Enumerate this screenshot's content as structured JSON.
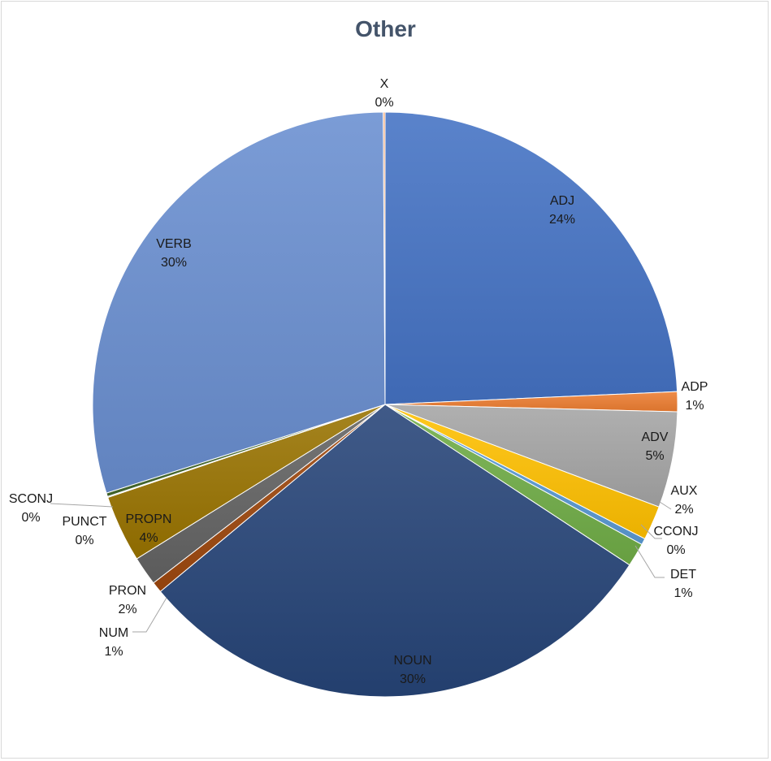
{
  "chart_data": {
    "type": "pie",
    "title": "Other",
    "slices": [
      {
        "label": "ADJ",
        "pct_label": "24%",
        "value": 24.3,
        "color": "#4472c4"
      },
      {
        "label": "ADP",
        "pct_label": "1%",
        "value": 1.1,
        "color": "#ed7d31"
      },
      {
        "label": "ADV",
        "pct_label": "5%",
        "value": 5.3,
        "color": "#a5a5a5"
      },
      {
        "label": "AUX",
        "pct_label": "2%",
        "value": 1.9,
        "color": "#ffc000"
      },
      {
        "label": "CCONJ",
        "pct_label": "0%",
        "value": 0.35,
        "color": "#5b9bd5"
      },
      {
        "label": "DET",
        "pct_label": "1%",
        "value": 1.3,
        "color": "#70ad47"
      },
      {
        "label": "NOUN",
        "pct_label": "30%",
        "value": 29.7,
        "color": "#264478"
      },
      {
        "label": "NUM",
        "pct_label": "1%",
        "value": 0.6,
        "color": "#9e480e"
      },
      {
        "label": "PRON",
        "pct_label": "2%",
        "value": 1.6,
        "color": "#636363"
      },
      {
        "label": "PROPN",
        "pct_label": "4%",
        "value": 3.7,
        "color": "#997300"
      },
      {
        "label": "PUNCT",
        "pct_label": "0%",
        "value": 0.05,
        "color": "#255e91"
      },
      {
        "label": "SCONJ",
        "pct_label": "0%",
        "value": 0.2,
        "color": "#43682b"
      },
      {
        "label": "VERB",
        "pct_label": "30%",
        "value": 29.8,
        "color": "#698ed0"
      },
      {
        "label": "X",
        "pct_label": "0%",
        "value": 0.1,
        "color": "#f1975a"
      }
    ]
  }
}
